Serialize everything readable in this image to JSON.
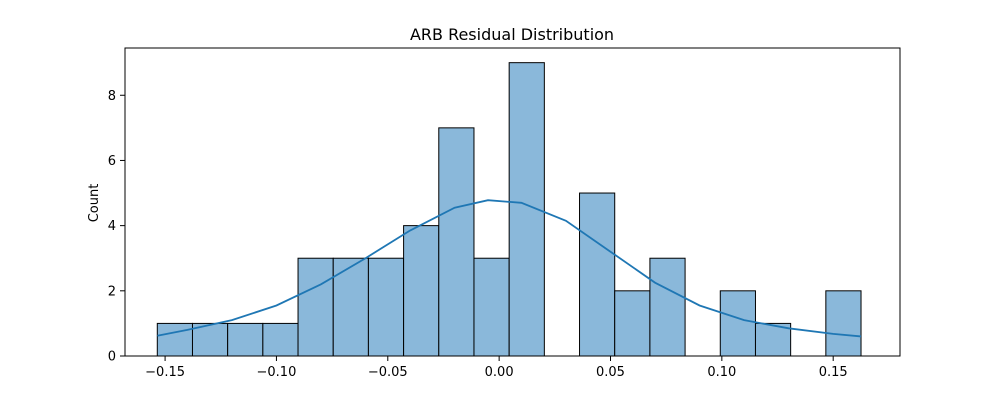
{
  "chart_data": {
    "type": "bar",
    "title": "ARB Residual Distribution",
    "xlabel": "",
    "ylabel": "Count",
    "xlim": [
      -0.168,
      0.18
    ],
    "ylim": [
      0,
      9.45
    ],
    "x_ticks": [
      -0.15,
      -0.1,
      -0.05,
      0.0,
      0.05,
      0.1,
      0.15
    ],
    "x_tick_labels": [
      "−0.15",
      "−0.10",
      "−0.05",
      "0.00",
      "0.05",
      "0.10",
      "0.15"
    ],
    "y_ticks": [
      0,
      2,
      4,
      6,
      8
    ],
    "y_tick_labels": [
      "0",
      "2",
      "4",
      "6",
      "8"
    ],
    "bins": {
      "edges": [
        -0.1535,
        -0.1377,
        -0.1219,
        -0.1061,
        -0.0903,
        -0.0745,
        -0.0587,
        -0.0429,
        -0.0271,
        -0.0113,
        0.0045,
        0.0203,
        0.0361,
        0.0519,
        0.0677,
        0.0835,
        0.0993,
        0.1151,
        0.1309,
        0.1467,
        0.1625
      ],
      "counts": [
        1,
        1,
        1,
        1,
        3,
        3,
        3,
        4,
        7,
        3,
        9,
        0,
        5,
        2,
        3,
        0,
        2,
        1,
        0,
        2
      ]
    },
    "kde": {
      "x": [
        -0.1535,
        -0.14,
        -0.12,
        -0.1,
        -0.08,
        -0.06,
        -0.04,
        -0.02,
        -0.005,
        0.01,
        0.03,
        0.05,
        0.07,
        0.09,
        0.11,
        0.13,
        0.15,
        0.1625
      ],
      "y": [
        0.62,
        0.8,
        1.1,
        1.55,
        2.2,
        3.0,
        3.85,
        4.55,
        4.78,
        4.7,
        4.15,
        3.2,
        2.25,
        1.55,
        1.1,
        0.85,
        0.68,
        0.6
      ]
    },
    "bar_color": "#8ab8da",
    "bar_edge_color": "#000000",
    "kde_color": "#1f77b4",
    "grid": false,
    "legend": "none"
  }
}
